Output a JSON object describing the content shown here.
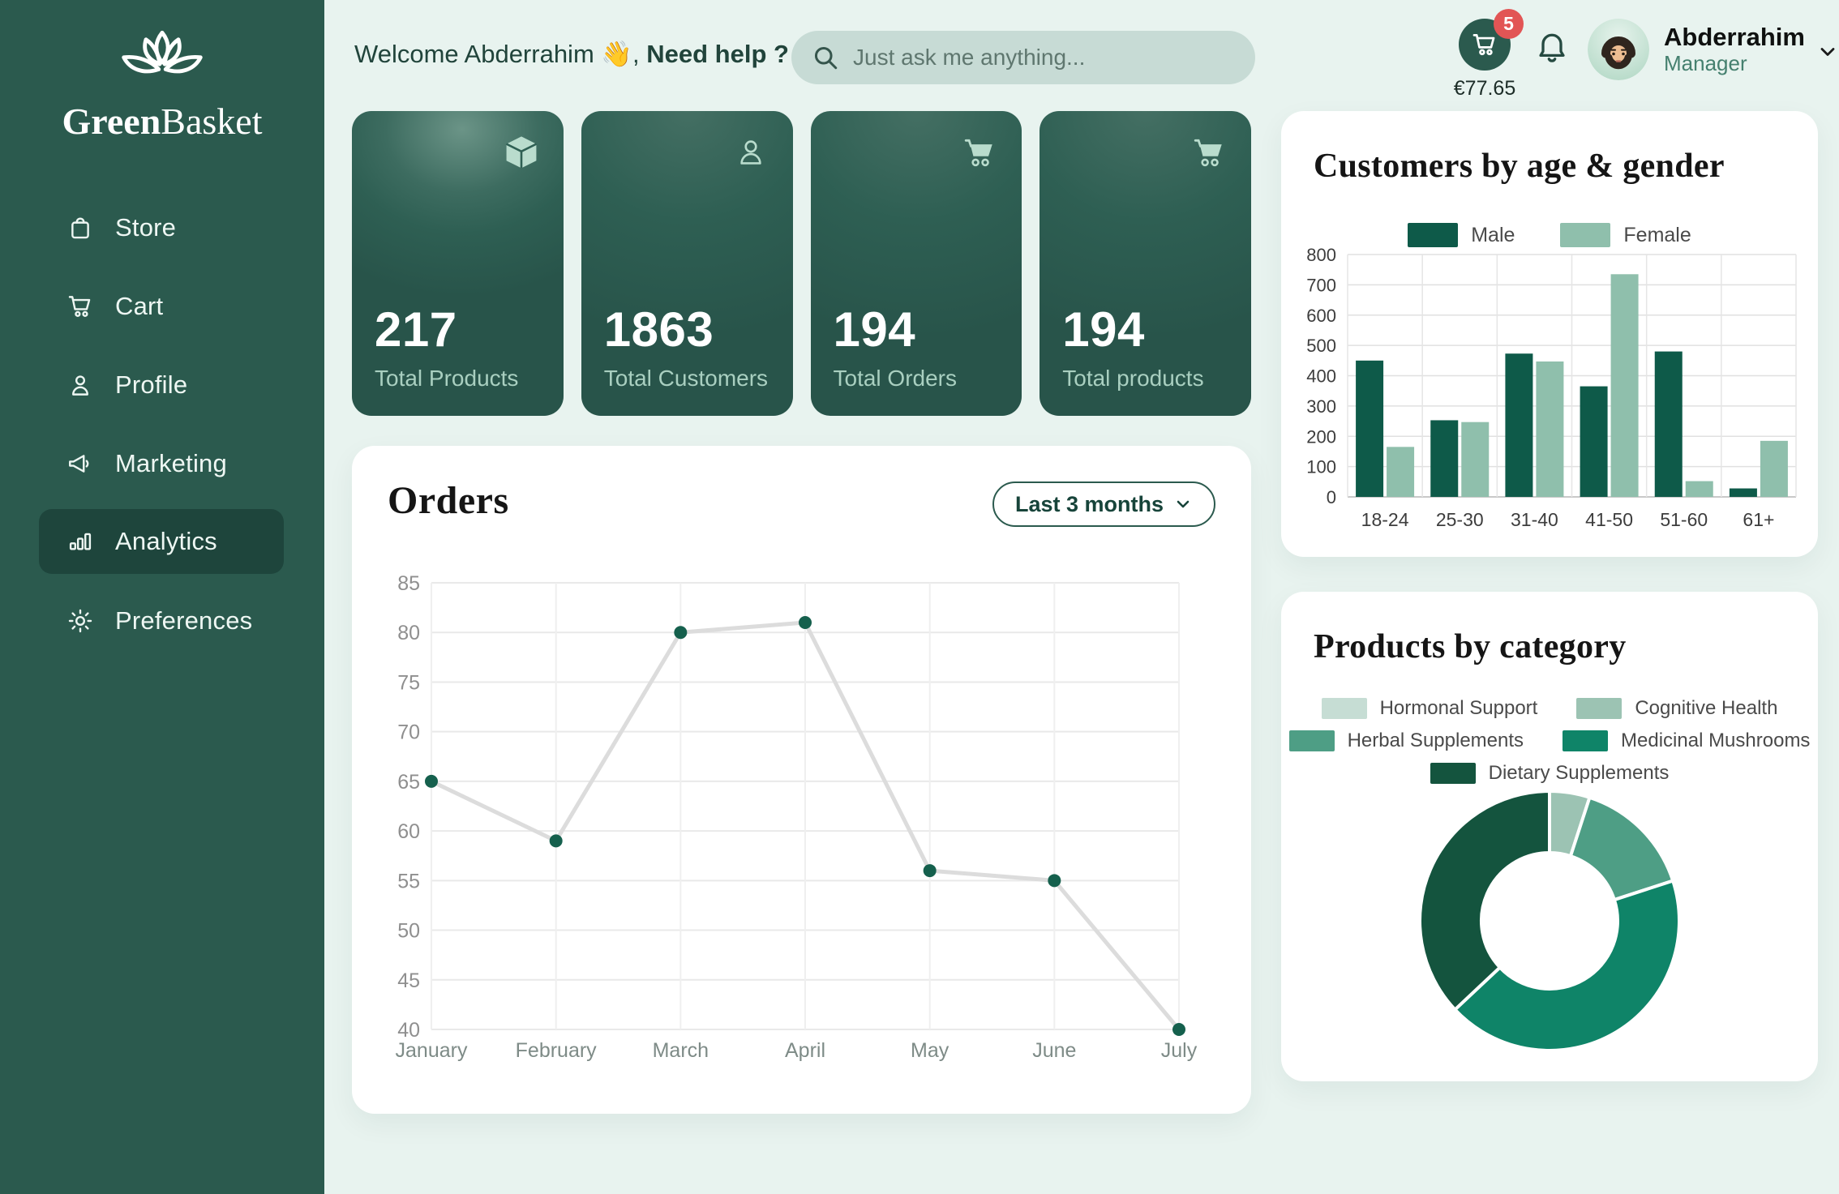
{
  "brand": {
    "name_part1": "Green",
    "name_part2": "Basket"
  },
  "sidebar": {
    "items": [
      {
        "label": "Store",
        "icon": "bag-icon",
        "active": false
      },
      {
        "label": "Cart",
        "icon": "cart-icon",
        "active": false
      },
      {
        "label": "Profile",
        "icon": "user-icon",
        "active": false
      },
      {
        "label": "Marketing",
        "icon": "megaphone-icon",
        "active": false
      },
      {
        "label": "Analytics",
        "icon": "bar-chart-icon",
        "active": true
      },
      {
        "label": "Preferences",
        "icon": "gear-icon",
        "active": false
      }
    ]
  },
  "header": {
    "welcome_text": "Welcome Abderrahim 👋,",
    "welcome_bold": "Need help ?",
    "search_placeholder": "Just ask me anything...",
    "cart": {
      "badge_count": "5",
      "total": "€77.65"
    },
    "user": {
      "name": "Abderrahim",
      "role": "Manager"
    }
  },
  "stats": [
    {
      "value": "217",
      "label": "Total Products",
      "icon": "package-icon"
    },
    {
      "value": "1863",
      "label": "Total Customers",
      "icon": "user-icon"
    },
    {
      "value": "194",
      "label": "Total Orders",
      "icon": "cart-icon"
    },
    {
      "value": "194",
      "label": "Total products",
      "icon": "cart-icon"
    }
  ],
  "orders_panel": {
    "range_selector_label": "Last 3 months"
  },
  "chart_data": [
    {
      "type": "line",
      "title": "Orders",
      "x": [
        "January",
        "February",
        "March",
        "April",
        "May",
        "June",
        "July"
      ],
      "series": [
        {
          "name": "Orders",
          "values": [
            65,
            59,
            80,
            81,
            56,
            55,
            40
          ]
        }
      ],
      "ylim": [
        40,
        85
      ],
      "ytick_step": 5,
      "grid": true,
      "line_color": "#dcdcdc",
      "point_color": "#15604d"
    },
    {
      "type": "bar",
      "title": "Customers by age & gender",
      "categories": [
        "18-24",
        "25-30",
        "31-40",
        "41-50",
        "51-60",
        "61+"
      ],
      "series": [
        {
          "name": "Male",
          "color": "#0e5a49",
          "values": [
            450,
            253,
            473,
            365,
            480,
            28
          ]
        },
        {
          "name": "Female",
          "color": "#8fbfac",
          "values": [
            165,
            247,
            447,
            735,
            52,
            185
          ]
        }
      ],
      "ylim": [
        0,
        800
      ],
      "ytick_step": 100,
      "grid": true,
      "legend_position": "top"
    },
    {
      "type": "pie",
      "title": "Products by category",
      "donut": true,
      "slices": [
        {
          "label": "Hormonal Support",
          "color": "#c6ddd4",
          "value": 0
        },
        {
          "label": "Cognitive Health",
          "color": "#9cc3b3",
          "value": 5
        },
        {
          "label": "Herbal Supplements",
          "color": "#4e9e85",
          "value": 15
        },
        {
          "label": "Medicinal Mushrooms",
          "color": "#0f8468",
          "value": 43
        },
        {
          "label": "Dietary Supplements",
          "color": "#14543e",
          "value": 37
        }
      ],
      "start_angle_deg": 0,
      "clockwise": true,
      "legend_position": "top"
    }
  ],
  "colors": {
    "sidebar_bg": "#2b5a4e",
    "sidebar_active_bg": "#1e453c",
    "page_bg": "#e8f3ef",
    "stat_card_bg": "#2e5f53",
    "stat_icon_mint": "#b9dccd",
    "badge_red": "#e25555",
    "accent_dark_green": "#17443a",
    "male_color": "#0e5a49",
    "female_color": "#8fbfac"
  }
}
